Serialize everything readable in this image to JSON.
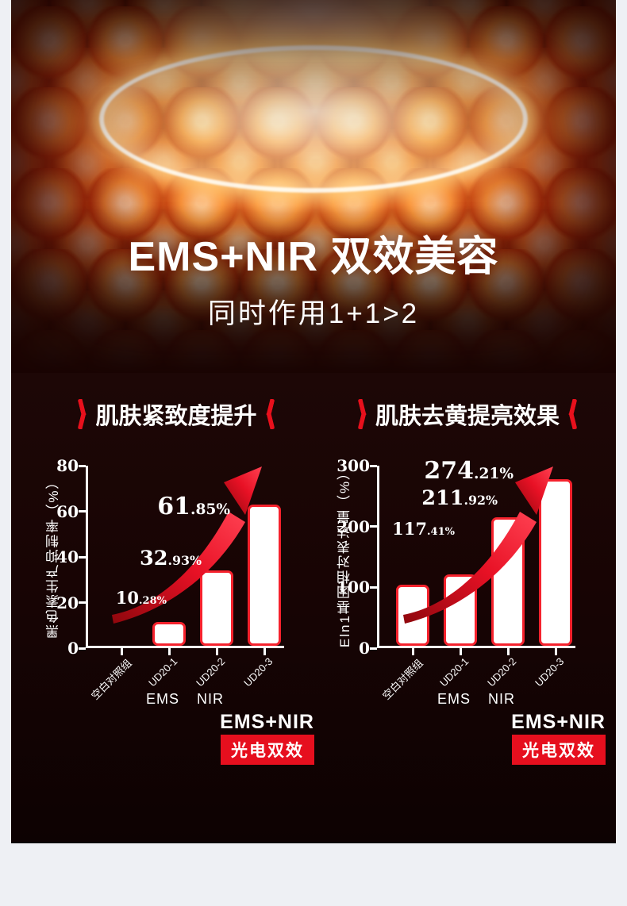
{
  "page": {
    "background": "#eef0f4",
    "panel_background": "#1d0706",
    "accent_red": "#e8101c",
    "text_color": "#ffffff"
  },
  "header": {
    "title": "EMS+NIR 双效美容",
    "subtitle": "同时作用1+1>2"
  },
  "chart_data": [
    {
      "type": "bar",
      "title": "肌肤紧致度提升",
      "ylabel": "黑色素生产抑制率（%）",
      "categories": [
        "空白对照组",
        "UD20-1",
        "UD20-2",
        "UD20-3"
      ],
      "values": [
        0,
        10.28,
        32.93,
        61.85
      ],
      "data_labels": [
        "",
        "10.28%",
        "32.93%",
        "61.85%"
      ],
      "ylim": [
        0,
        80
      ],
      "yticks": [
        0,
        20,
        40,
        60,
        80
      ],
      "grid": false,
      "legend_position": "none",
      "bar_fill": "#ffffff",
      "bar_border": "#f5222d",
      "group_labels": [
        "",
        "EMS",
        "NIR",
        ""
      ],
      "combo_label": "EMS+NIR",
      "badge": "光电双效"
    },
    {
      "type": "bar",
      "title": "肌肤去黄提亮效果",
      "ylabel": "Eln1基因相对表达量（%）",
      "categories": [
        "空白对照组",
        "UD20-1",
        "UD20-2",
        "UD20-3"
      ],
      "values": [
        100,
        117.41,
        211.92,
        274.21
      ],
      "data_labels": [
        "",
        "117.41%",
        "211.92%",
        "274.21%"
      ],
      "ylim": [
        0,
        300
      ],
      "yticks": [
        0,
        100,
        200,
        300
      ],
      "grid": false,
      "legend_position": "none",
      "bar_fill": "#ffffff",
      "bar_border": "#f5222d",
      "group_labels": [
        "",
        "EMS",
        "NIR",
        ""
      ],
      "combo_label": "EMS+NIR",
      "badge": "光电双效"
    }
  ]
}
